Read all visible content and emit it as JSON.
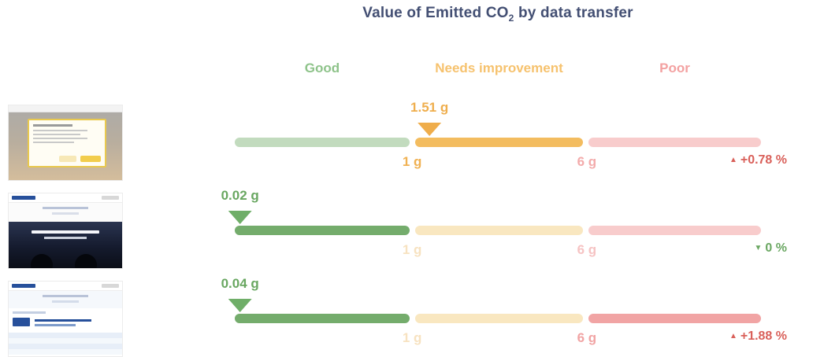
{
  "title": {
    "part1": "Value of Emitted CO",
    "sub": "2",
    "part2": " by data transfer",
    "color": "#434f73"
  },
  "legend": [
    {
      "label": "Good",
      "color": "#8ec38a"
    },
    {
      "label": "Needs improvement",
      "color": "#f6c26e"
    },
    {
      "label": "Poor",
      "color": "#f3a1a1"
    }
  ],
  "rows": [
    {
      "value": "1.51 g",
      "value_color": "#efae4d",
      "marker_left": "37%",
      "marker_color": "#efad4b",
      "segments": [
        "#c2dbbe",
        "#f3bc5f",
        "#f8cccc"
      ],
      "tick_1g": {
        "label": "1 g",
        "color": "#f0b152"
      },
      "tick_6g": {
        "label": "6 g",
        "color": "#f3abab"
      },
      "change": {
        "arrow": "▲",
        "text": "+0.78 %",
        "color": "#d9605a"
      }
    },
    {
      "value": "0.02 g",
      "value_color": "#69a761",
      "marker_left": "1%",
      "marker_color": "#6fae68",
      "segments": [
        "#74ac6c",
        "#f9e7c0",
        "#f8cccc"
      ],
      "tick_1g": {
        "label": "1 g",
        "color": "#f7e2c0"
      },
      "tick_6g": {
        "label": "6 g",
        "color": "#f6c3c3"
      },
      "change": {
        "arrow": "▼",
        "text": "0 %",
        "color": "#6aa762"
      }
    },
    {
      "value": "0.04 g",
      "value_color": "#69a761",
      "marker_left": "1%",
      "marker_color": "#6fae68",
      "segments": [
        "#74ac6c",
        "#f9e7c0",
        "#f1a4a4"
      ],
      "tick_1g": {
        "label": "1 g",
        "color": "#f7e2c0"
      },
      "tick_6g": {
        "label": "6 g",
        "color": "#f1a4a4"
      },
      "change": {
        "arrow": "▲",
        "text": "+1.88 %",
        "color": "#d9605a"
      }
    }
  ],
  "chart_data": {
    "type": "bar",
    "title": "Value of Emitted CO2 by data transfer",
    "unit": "g",
    "thresholds": [
      1,
      6
    ],
    "zones": [
      {
        "label": "Good",
        "range": [
          0,
          1
        ]
      },
      {
        "label": "Needs improvement",
        "range": [
          1,
          6
        ]
      },
      {
        "label": "Poor",
        "range": [
          6,
          null
        ]
      }
    ],
    "rows": [
      {
        "value": 1.51,
        "zone": "Needs improvement",
        "change_pct": 0.78,
        "change_direction": "up"
      },
      {
        "value": 0.02,
        "zone": "Good",
        "change_pct": 0,
        "change_direction": "down"
      },
      {
        "value": 0.04,
        "zone": "Good",
        "change_pct": 1.88,
        "change_direction": "up"
      }
    ]
  }
}
